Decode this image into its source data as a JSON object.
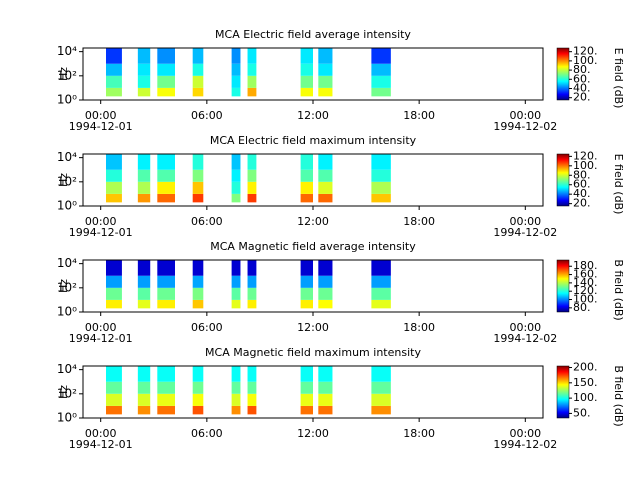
{
  "chart_data": [
    {
      "type": "heatmap",
      "title": "MCA  Electric field average intensity",
      "ylabel": "Hz",
      "colorbar_label": "E field (dB)",
      "x_start": [
        0.3,
        2.1,
        3.2,
        5.2,
        7.4,
        8.3,
        11.3,
        12.3,
        15.3
      ],
      "x_end": [
        1.2,
        2.8,
        4.2,
        5.8,
        7.9,
        8.8,
        12.0,
        13.1,
        16.4
      ],
      "y_edges": [
        2,
        10,
        100,
        1000,
        20000
      ],
      "values": [
        [
          75,
          65,
          50,
          35
        ],
        [
          80,
          60,
          55,
          50
        ],
        [
          85,
          70,
          55,
          45
        ],
        [
          90,
          80,
          60,
          50
        ],
        [
          60,
          55,
          50,
          45
        ],
        [
          95,
          75,
          60,
          55
        ],
        [
          85,
          70,
          60,
          55
        ],
        [
          85,
          70,
          55,
          50
        ],
        [
          70,
          60,
          50,
          35
        ]
      ],
      "xlim": [
        -1,
        25
      ],
      "xticks": [
        {
          "value": 0,
          "label": "00:00"
        },
        {
          "value": 6,
          "label": "06:00"
        },
        {
          "value": 12,
          "label": "12:00"
        },
        {
          "value": 18,
          "label": "18:00"
        },
        {
          "value": 24,
          "label": "00:00"
        }
      ],
      "x_date_labels": [
        {
          "value": 0,
          "label": "1994-12-01"
        },
        {
          "value": 24,
          "label": "1994-12-02"
        }
      ],
      "ylim": [
        1,
        20000
      ],
      "log_y": true,
      "yticks": [
        {
          "value": 1,
          "label": "10⁰"
        },
        {
          "value": 100,
          "label": "10²"
        },
        {
          "value": 10000,
          "label": "10⁴"
        }
      ],
      "colormap": "jet",
      "clim": [
        15,
        128
      ],
      "colorbar_ticks": [
        {
          "value": 20,
          "label": "20."
        },
        {
          "value": 40,
          "label": "40."
        },
        {
          "value": 60,
          "label": "60."
        },
        {
          "value": 80,
          "label": "80."
        },
        {
          "value": 100,
          "label": "100."
        },
        {
          "value": 120,
          "label": "120."
        }
      ]
    },
    {
      "type": "heatmap",
      "title": "MCA  Electric field maximum intensity",
      "ylabel": "Hz",
      "colorbar_label": "E field (dB)",
      "x_start": [
        0.3,
        2.1,
        3.2,
        5.2,
        7.4,
        8.3,
        11.3,
        12.3,
        15.3
      ],
      "x_end": [
        1.2,
        2.8,
        4.2,
        5.8,
        7.9,
        8.8,
        12.0,
        13.1,
        16.4
      ],
      "y_edges": [
        2,
        10,
        100,
        1000,
        20000
      ],
      "values": [
        [
          90,
          75,
          60,
          50
        ],
        [
          95,
          75,
          65,
          55
        ],
        [
          100,
          85,
          65,
          55
        ],
        [
          105,
          90,
          70,
          60
        ],
        [
          70,
          60,
          55,
          50
        ],
        [
          105,
          85,
          70,
          60
        ],
        [
          100,
          85,
          65,
          60
        ],
        [
          100,
          80,
          65,
          55
        ],
        [
          90,
          75,
          60,
          55
        ]
      ],
      "xlim": [
        -1,
        25
      ],
      "xticks": [
        {
          "value": 0,
          "label": "00:00"
        },
        {
          "value": 6,
          "label": "06:00"
        },
        {
          "value": 12,
          "label": "12:00"
        },
        {
          "value": 18,
          "label": "18:00"
        },
        {
          "value": 24,
          "label": "00:00"
        }
      ],
      "x_date_labels": [
        {
          "value": 0,
          "label": "1994-12-01"
        },
        {
          "value": 24,
          "label": "1994-12-02"
        }
      ],
      "ylim": [
        1,
        20000
      ],
      "log_y": true,
      "yticks": [
        {
          "value": 1,
          "label": "10⁰"
        },
        {
          "value": 100,
          "label": "10²"
        },
        {
          "value": 10000,
          "label": "10⁴"
        }
      ],
      "colormap": "jet",
      "clim": [
        15,
        125
      ],
      "colorbar_ticks": [
        {
          "value": 20,
          "label": "20."
        },
        {
          "value": 40,
          "label": "40."
        },
        {
          "value": 60,
          "label": "60."
        },
        {
          "value": 80,
          "label": "80."
        },
        {
          "value": 100,
          "label": "100."
        },
        {
          "value": 120,
          "label": "120."
        }
      ]
    },
    {
      "type": "heatmap",
      "title": "MCA  Magnetic field average intensity",
      "ylabel": "Hz",
      "colorbar_label": "B field (dB)",
      "x_start": [
        0.3,
        2.1,
        3.2,
        5.2,
        7.4,
        8.3,
        11.3,
        12.3,
        15.3
      ],
      "x_end": [
        1.2,
        2.8,
        4.2,
        5.8,
        7.9,
        8.8,
        12.0,
        13.1,
        16.4
      ],
      "y_edges": [
        2,
        10,
        100,
        1000,
        20000
      ],
      "values": [
        [
          150,
          130,
          105,
          80
        ],
        [
          145,
          128,
          105,
          80
        ],
        [
          150,
          130,
          105,
          80
        ],
        [
          155,
          132,
          106,
          80
        ],
        [
          145,
          128,
          105,
          80
        ],
        [
          150,
          130,
          105,
          80
        ],
        [
          150,
          130,
          105,
          80
        ],
        [
          148,
          130,
          105,
          80
        ],
        [
          145,
          128,
          105,
          80
        ]
      ],
      "xlim": [
        -1,
        25
      ],
      "xticks": [
        {
          "value": 0,
          "label": "00:00"
        },
        {
          "value": 6,
          "label": "06:00"
        },
        {
          "value": 12,
          "label": "12:00"
        },
        {
          "value": 18,
          "label": "18:00"
        },
        {
          "value": 24,
          "label": "00:00"
        }
      ],
      "x_date_labels": [
        {
          "value": 0,
          "label": "1994-12-01"
        },
        {
          "value": 24,
          "label": "1994-12-02"
        }
      ],
      "ylim": [
        1,
        20000
      ],
      "log_y": true,
      "yticks": [
        {
          "value": 1,
          "label": "10⁰"
        },
        {
          "value": 100,
          "label": "10²"
        },
        {
          "value": 10000,
          "label": "10⁴"
        }
      ],
      "colormap": "jet",
      "clim": [
        70,
        195
      ],
      "colorbar_ticks": [
        {
          "value": 80,
          "label": "80."
        },
        {
          "value": 100,
          "label": "100."
        },
        {
          "value": 120,
          "label": "120."
        },
        {
          "value": 140,
          "label": "140."
        },
        {
          "value": 160,
          "label": "160."
        },
        {
          "value": 180,
          "label": "180."
        }
      ]
    },
    {
      "type": "heatmap",
      "title": "MCA  Magnetic field maximum intensity",
      "ylabel": "Hz",
      "colorbar_label": "B field (dB)",
      "x_start": [
        0.3,
        2.1,
        3.2,
        5.2,
        7.4,
        8.3,
        11.3,
        12.3,
        15.3
      ],
      "x_end": [
        1.2,
        2.8,
        4.2,
        5.8,
        7.9,
        8.8,
        12.0,
        13.1,
        16.4
      ],
      "y_edges": [
        2,
        10,
        100,
        1000,
        20000
      ],
      "values": [
        [
          165,
          135,
          115,
          100
        ],
        [
          160,
          135,
          115,
          100
        ],
        [
          165,
          138,
          115,
          100
        ],
        [
          170,
          140,
          117,
          100
        ],
        [
          160,
          135,
          115,
          100
        ],
        [
          170,
          140,
          115,
          100
        ],
        [
          165,
          138,
          115,
          100
        ],
        [
          165,
          138,
          115,
          100
        ],
        [
          160,
          135,
          115,
          100
        ]
      ],
      "xlim": [
        -1,
        25
      ],
      "xticks": [
        {
          "value": 0,
          "label": "00:00"
        },
        {
          "value": 6,
          "label": "06:00"
        },
        {
          "value": 12,
          "label": "12:00"
        },
        {
          "value": 18,
          "label": "18:00"
        },
        {
          "value": 24,
          "label": "00:00"
        }
      ],
      "x_date_labels": [
        {
          "value": 0,
          "label": "1994-12-01"
        },
        {
          "value": 24,
          "label": "1994-12-02"
        }
      ],
      "ylim": [
        1,
        20000
      ],
      "log_y": true,
      "yticks": [
        {
          "value": 1,
          "label": "10⁰"
        },
        {
          "value": 100,
          "label": "10²"
        },
        {
          "value": 10000,
          "label": "10⁴"
        }
      ],
      "colormap": "jet",
      "clim": [
        35,
        205
      ],
      "colorbar_ticks": [
        {
          "value": 50,
          "label": "50."
        },
        {
          "value": 100,
          "label": "100."
        },
        {
          "value": 150,
          "label": "150."
        },
        {
          "value": 200,
          "label": "200."
        }
      ]
    }
  ]
}
